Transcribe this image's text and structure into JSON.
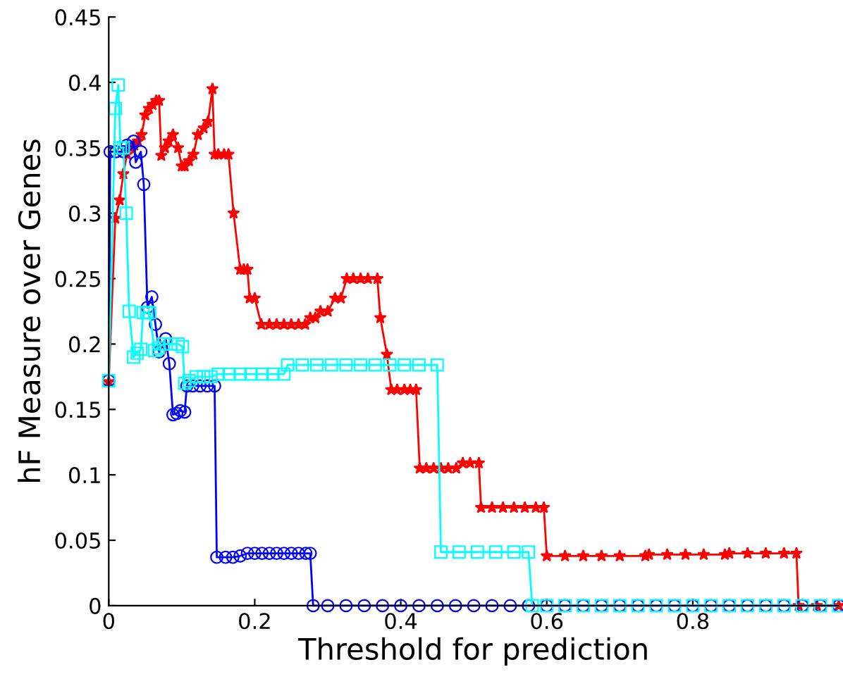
{
  "chart_data": {
    "type": "line",
    "xlabel": "Threshold for prediction",
    "ylabel": "hF Measure over Genes",
    "xlim": [
      0,
      1
    ],
    "xticks": [
      0,
      0.2,
      0.4,
      0.6,
      0.8
    ],
    "ylim": [
      0,
      0.45
    ],
    "yticks": [
      0,
      0.05,
      0.1,
      0.15,
      0.2,
      0.25,
      0.3,
      0.35,
      0.4,
      0.45
    ],
    "grid": false,
    "legend": false,
    "series": [
      {
        "color": "#ff0000",
        "marker": "star",
        "x": [
          0,
          0.009,
          0.015,
          0.02,
          0.025,
          0.03,
          0.035,
          0.04,
          0.045,
          0.05,
          0.055,
          0.06,
          0.065,
          0.069,
          0.072,
          0.077,
          0.082,
          0.088,
          0.095,
          0.1,
          0.104,
          0.11,
          0.116,
          0.122,
          0.13,
          0.136,
          0.142,
          0.145,
          0.15,
          0.158,
          0.164,
          0.171,
          0.18,
          0.185,
          0.19,
          0.193,
          0.2,
          0.209,
          0.22,
          0.23,
          0.24,
          0.25,
          0.26,
          0.269,
          0.276,
          0.283,
          0.29,
          0.3,
          0.31,
          0.318,
          0.326,
          0.335,
          0.345,
          0.355,
          0.368,
          0.372,
          0.381,
          0.387,
          0.395,
          0.405,
          0.413,
          0.421,
          0.426,
          0.435,
          0.445,
          0.455,
          0.465,
          0.476,
          0.485,
          0.495,
          0.507,
          0.51,
          0.525,
          0.54,
          0.555,
          0.57,
          0.585,
          0.596,
          0.6,
          0.625,
          0.65,
          0.675,
          0.7,
          0.735,
          0.74,
          0.765,
          0.79,
          0.815,
          0.844,
          0.85,
          0.875,
          0.9,
          0.925,
          0.942,
          0.945,
          0.97,
          1.0
        ],
        "values": [
          0.171,
          0.296,
          0.31,
          0.33,
          0.345,
          0.35,
          0.352,
          0.355,
          0.36,
          0.375,
          0.38,
          0.383,
          0.386,
          0.386,
          0.344,
          0.35,
          0.355,
          0.36,
          0.35,
          0.336,
          0.336,
          0.34,
          0.345,
          0.36,
          0.365,
          0.37,
          0.395,
          0.345,
          0.345,
          0.345,
          0.345,
          0.3,
          0.257,
          0.257,
          0.257,
          0.235,
          0.235,
          0.215,
          0.215,
          0.215,
          0.215,
          0.215,
          0.215,
          0.215,
          0.22,
          0.22,
          0.225,
          0.225,
          0.235,
          0.235,
          0.25,
          0.25,
          0.25,
          0.25,
          0.25,
          0.22,
          0.192,
          0.165,
          0.165,
          0.165,
          0.165,
          0.165,
          0.105,
          0.105,
          0.105,
          0.105,
          0.105,
          0.105,
          0.109,
          0.109,
          0.109,
          0.075,
          0.075,
          0.075,
          0.075,
          0.075,
          0.075,
          0.075,
          0.038,
          0.038,
          0.038,
          0.038,
          0.038,
          0.038,
          0.039,
          0.039,
          0.039,
          0.039,
          0.039,
          0.04,
          0.04,
          0.04,
          0.04,
          0.04,
          0,
          0,
          0
        ]
      },
      {
        "color": "#0000ff",
        "marker": "circle",
        "x": [
          0,
          0.002,
          0.01,
          0.02,
          0.025,
          0.034,
          0.037,
          0.044,
          0.048,
          0.053,
          0.059,
          0.064,
          0.069,
          0.078,
          0.083,
          0.088,
          0.093,
          0.098,
          0.104,
          0.107,
          0.115,
          0.125,
          0.135,
          0.145,
          0.148,
          0.16,
          0.17,
          0.18,
          0.19,
          0.2,
          0.21,
          0.22,
          0.23,
          0.24,
          0.25,
          0.26,
          0.27,
          0.276,
          0.28,
          0.3,
          0.325,
          0.35,
          0.375,
          0.4,
          0.425,
          0.45,
          0.475,
          0.5,
          0.525,
          0.55,
          0.575,
          0.6,
          0.625,
          0.65,
          0.675,
          0.7,
          0.725,
          0.75,
          0.775,
          0.8,
          0.825,
          0.85,
          0.875,
          0.9,
          0.925,
          0.95,
          0.975,
          1.0
        ],
        "values": [
          0.172,
          0.347,
          0.347,
          0.347,
          0.352,
          0.355,
          0.339,
          0.347,
          0.322,
          0.228,
          0.236,
          0.215,
          0.194,
          0.204,
          0.185,
          0.146,
          0.147,
          0.149,
          0.148,
          0.168,
          0.168,
          0.168,
          0.168,
          0.168,
          0.037,
          0.037,
          0.037,
          0.038,
          0.04,
          0.04,
          0.04,
          0.04,
          0.04,
          0.04,
          0.04,
          0.04,
          0.04,
          0.04,
          0,
          0,
          0,
          0,
          0,
          0,
          0,
          0,
          0,
          0,
          0,
          0,
          0,
          0,
          0,
          0,
          0,
          0,
          0,
          0,
          0,
          0,
          0,
          0,
          0,
          0,
          0,
          0,
          0,
          0
        ]
      },
      {
        "color": "#00ffff",
        "marker": "square",
        "x": [
          0,
          0.009,
          0.013,
          0.016,
          0.02,
          0.024,
          0.028,
          0.034,
          0.039,
          0.044,
          0.047,
          0.052,
          0.056,
          0.063,
          0.068,
          0.075,
          0.085,
          0.095,
          0.101,
          0.104,
          0.11,
          0.12,
          0.13,
          0.14,
          0.15,
          0.165,
          0.18,
          0.195,
          0.21,
          0.225,
          0.24,
          0.245,
          0.265,
          0.285,
          0.305,
          0.325,
          0.345,
          0.365,
          0.385,
          0.405,
          0.425,
          0.45,
          0.455,
          0.48,
          0.505,
          0.53,
          0.555,
          0.575,
          0.58,
          0.6,
          0.625,
          0.65,
          0.675,
          0.7,
          0.725,
          0.75,
          0.775,
          0.8,
          0.825,
          0.85,
          0.875,
          0.9,
          0.925,
          0.95,
          0.975,
          1.0
        ],
        "values": [
          0.172,
          0.38,
          0.398,
          0.35,
          0.35,
          0.3,
          0.225,
          0.19,
          0.193,
          0.196,
          0.224,
          0.224,
          0.224,
          0.195,
          0.197,
          0.2,
          0.2,
          0.2,
          0.198,
          0.17,
          0.172,
          0.175,
          0.175,
          0.175,
          0.177,
          0.177,
          0.177,
          0.177,
          0.177,
          0.177,
          0.177,
          0.184,
          0.184,
          0.184,
          0.184,
          0.184,
          0.184,
          0.184,
          0.184,
          0.184,
          0.184,
          0.184,
          0.041,
          0.041,
          0.041,
          0.041,
          0.041,
          0.041,
          0,
          0,
          0,
          0,
          0,
          0,
          0,
          0,
          0,
          0,
          0,
          0,
          0,
          0,
          0,
          0,
          0,
          0
        ]
      }
    ]
  }
}
